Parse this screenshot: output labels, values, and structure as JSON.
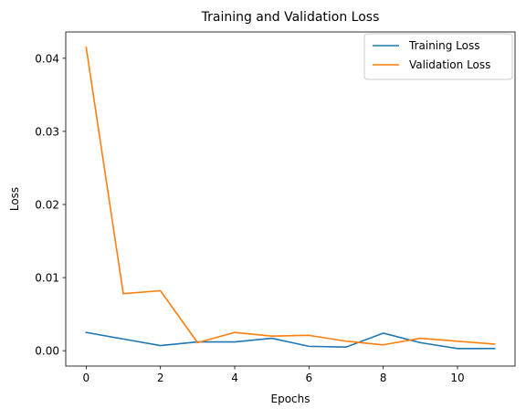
{
  "chart_data": {
    "type": "line",
    "title": "Training and Validation Loss",
    "xlabel": "Epochs",
    "ylabel": "Loss",
    "xlim": [
      -0.55,
      11.55
    ],
    "ylim": [
      -0.0021,
      0.0436
    ],
    "x_ticks": [
      0,
      2,
      4,
      6,
      8,
      10
    ],
    "x_tick_labels": [
      "0",
      "2",
      "4",
      "6",
      "8",
      "10"
    ],
    "y_ticks": [
      0.0,
      0.01,
      0.02,
      0.03,
      0.04
    ],
    "y_tick_labels": [
      "0.00",
      "0.01",
      "0.02",
      "0.03",
      "0.04"
    ],
    "grid": false,
    "legend_position": "top-right",
    "x": [
      0,
      1,
      2,
      3,
      4,
      5,
      6,
      7,
      8,
      9,
      10,
      11
    ],
    "series": [
      {
        "name": "Training Loss",
        "color": "#1f77b4",
        "values": [
          0.0025,
          0.0016,
          0.0007,
          0.0012,
          0.0012,
          0.0017,
          0.0006,
          0.0005,
          0.0024,
          0.0011,
          0.0003,
          0.0003
        ]
      },
      {
        "name": "Validation Loss",
        "color": "#ff7f0e",
        "values": [
          0.0415,
          0.0078,
          0.0082,
          0.0011,
          0.0025,
          0.002,
          0.0021,
          0.0013,
          0.0008,
          0.0017,
          0.0013,
          0.0009
        ]
      }
    ]
  }
}
